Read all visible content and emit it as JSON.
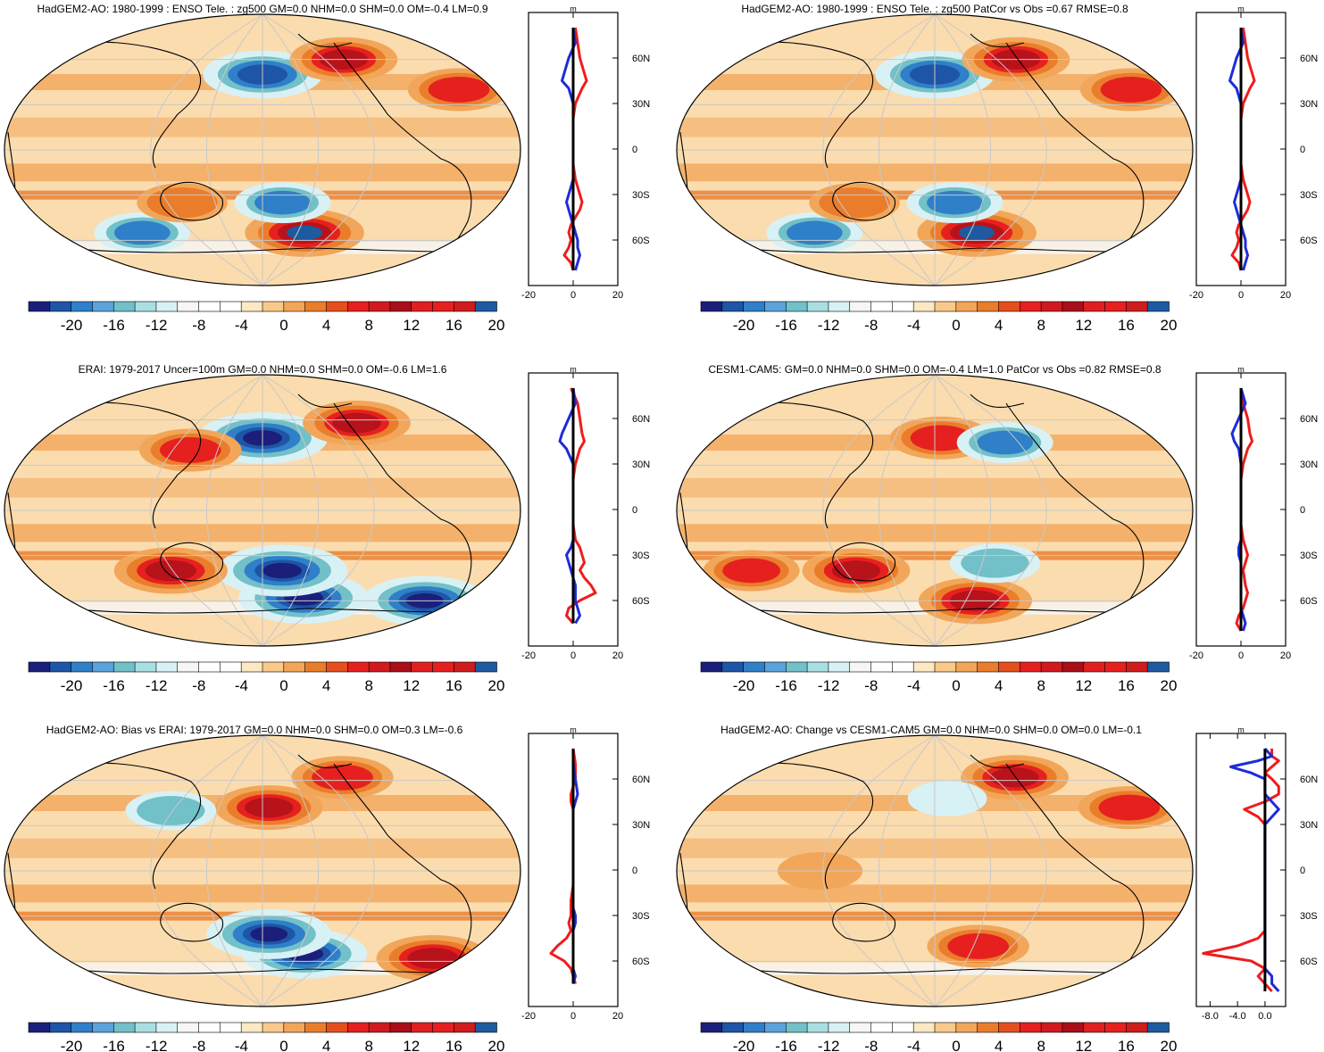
{
  "colors": {
    "scale": [
      "#1b1f7a",
      "#1e55a6",
      "#2f7fc9",
      "#5aa3dd",
      "#72c0c8",
      "#a9dfe3",
      "#d8f1f5",
      "#f6f6f6",
      "#ffffff",
      "#fbe6c2",
      "#f7c98a",
      "#f2a65a",
      "#ea7d2b",
      "#e1521f",
      "#e6201f",
      "#d51e20",
      "#b8121b",
      "#e02020",
      "#d01c1c",
      "#f03030",
      "#1e5aa0"
    ],
    "land": "#000000",
    "grid": "#c8c8c8",
    "zonal_pos": "#ee1c1c",
    "zonal_neg": "#1f2bd8",
    "zonal_mean": "#000000"
  },
  "colorbar_labels": [
    "-20",
    "-16",
    "-12",
    "-8",
    "-4",
    "0",
    "4",
    "8",
    "12",
    "16",
    "20"
  ],
  "chart_data": [
    {
      "type": "heatmap",
      "title": "HadGEM2-AO: 1980-1999 : ENSO Tele. : zg500 GM=0.0 NHM=0.0 SHM=0.0 OM=-0.4 LM=0.9",
      "colorbar": {
        "range": [
          -20,
          20
        ],
        "ticks": [
          "-20",
          "-16",
          "-12",
          "-8",
          "-4",
          "0",
          "4",
          "8",
          "12",
          "16",
          "20"
        ]
      },
      "anomalies": [
        {
          "lon": 180,
          "lat": 50,
          "value": -18
        },
        {
          "lon": 250,
          "lat": 60,
          "value": 14
        },
        {
          "lon": 330,
          "lat": 40,
          "value": 12
        },
        {
          "lon": 215,
          "lat": -55,
          "value": 18
        },
        {
          "lon": 195,
          "lat": -35,
          "value": -10
        },
        {
          "lon": 80,
          "lat": -55,
          "value": -10
        },
        {
          "lon": 120,
          "lat": -35,
          "value": 8
        }
      ],
      "zonal": {
        "ylabel": "m",
        "xlim": [
          -20,
          20
        ],
        "xticks": [
          "-20",
          "0",
          "20"
        ],
        "lat_ticks": [
          "60N",
          "30N",
          "0",
          "30S",
          "60S"
        ],
        "lat_values": [
          60,
          30,
          0,
          -30,
          -60
        ],
        "lat": [
          80,
          70,
          60,
          50,
          45,
          40,
          30,
          20,
          10,
          0,
          -10,
          -20,
          -25,
          -30,
          -35,
          -40,
          -50,
          -55,
          -60,
          -65,
          -70,
          -75,
          -80
        ],
        "ocean": [
          0,
          1,
          -2,
          -4,
          -5,
          -2,
          0,
          0,
          0,
          0,
          0,
          0,
          -1,
          -2,
          -3,
          -2,
          0,
          1,
          2,
          2,
          3,
          2,
          1
        ],
        "land": [
          1,
          2,
          3,
          5,
          6,
          4,
          1,
          0,
          0,
          0,
          0,
          1,
          2,
          3,
          4,
          3,
          -1,
          -2,
          -1,
          -2,
          -4,
          -1,
          0
        ],
        "mean": [
          0,
          0,
          0,
          0,
          0,
          0,
          0,
          0,
          0,
          0,
          0,
          0,
          0,
          0,
          0,
          0,
          0,
          0,
          0,
          0,
          0,
          0,
          0
        ]
      }
    },
    {
      "type": "heatmap",
      "title": "HadGEM2-AO: 1980-1999 : ENSO Tele. : zg500 PatCor vs Obs =0.67 RMSE=0.8",
      "colorbar": {
        "range": [
          -20,
          20
        ],
        "ticks": [
          "-20",
          "-16",
          "-12",
          "-8",
          "-4",
          "0",
          "4",
          "8",
          "12",
          "16",
          "20"
        ]
      },
      "anomalies": [
        {
          "lon": 180,
          "lat": 50,
          "value": -18
        },
        {
          "lon": 250,
          "lat": 60,
          "value": 14
        },
        {
          "lon": 330,
          "lat": 40,
          "value": 12
        },
        {
          "lon": 215,
          "lat": -55,
          "value": 18
        },
        {
          "lon": 195,
          "lat": -35,
          "value": -10
        },
        {
          "lon": 80,
          "lat": -55,
          "value": -10
        },
        {
          "lon": 120,
          "lat": -35,
          "value": 8
        }
      ],
      "zonal": {
        "ylabel": "m",
        "xlim": [
          -20,
          20
        ],
        "xticks": [
          "-20",
          "0",
          "20"
        ],
        "lat_ticks": [
          "60N",
          "30N",
          "0",
          "30S",
          "60S"
        ],
        "lat_values": [
          60,
          30,
          0,
          -30,
          -60
        ],
        "lat": [
          80,
          70,
          60,
          50,
          45,
          40,
          30,
          20,
          10,
          0,
          -10,
          -20,
          -25,
          -30,
          -35,
          -40,
          -50,
          -55,
          -60,
          -65,
          -70,
          -75,
          -80
        ],
        "ocean": [
          0,
          1,
          -2,
          -4,
          -5,
          -2,
          0,
          0,
          0,
          0,
          0,
          0,
          -1,
          -2,
          -3,
          -2,
          0,
          1,
          2,
          2,
          3,
          2,
          1
        ],
        "land": [
          1,
          2,
          3,
          5,
          6,
          4,
          1,
          0,
          0,
          0,
          0,
          1,
          2,
          3,
          4,
          3,
          -1,
          -2,
          -1,
          -2,
          -4,
          -1,
          0
        ],
        "mean": [
          0,
          0,
          0,
          0,
          0,
          0,
          0,
          0,
          0,
          0,
          0,
          0,
          0,
          0,
          0,
          0,
          0,
          0,
          0,
          0,
          0,
          0,
          0
        ]
      }
    },
    {
      "type": "heatmap",
      "title": "ERAI: 1979-2017 Uncer=100m GM=0.0 NHM=0.0 SHM=0.0 OM=-0.6 LM=1.6",
      "colorbar": {
        "range": [
          -20,
          20
        ],
        "ticks": [
          "-20",
          "-16",
          "-12",
          "-8",
          "-4",
          "0",
          "4",
          "8",
          "12",
          "16",
          "20"
        ]
      },
      "anomalies": [
        {
          "lon": 180,
          "lat": 48,
          "value": -22
        },
        {
          "lon": 260,
          "lat": 58,
          "value": 14
        },
        {
          "lon": 125,
          "lat": 40,
          "value": 12
        },
        {
          "lon": 215,
          "lat": -58,
          "value": -22
        },
        {
          "lon": 195,
          "lat": -40,
          "value": -22
        },
        {
          "lon": 110,
          "lat": -40,
          "value": 16
        },
        {
          "lon": 320,
          "lat": -60,
          "value": -20
        }
      ],
      "zonal": {
        "ylabel": "m",
        "xlim": [
          -20,
          20
        ],
        "xticks": [
          "-20",
          "0",
          "20"
        ],
        "lat_ticks": [
          "60N",
          "30N",
          "0",
          "30S",
          "60S"
        ],
        "lat_values": [
          60,
          30,
          0,
          -30,
          -60
        ],
        "lat": [
          80,
          70,
          60,
          50,
          45,
          40,
          30,
          20,
          10,
          0,
          -10,
          -20,
          -25,
          -30,
          -35,
          -40,
          -45,
          -50,
          -55,
          -60,
          -65,
          -70,
          -75
        ],
        "ocean": [
          0,
          1,
          -2,
          -5,
          -6,
          -3,
          0,
          0,
          0,
          0,
          0,
          0,
          -1,
          -3,
          -2,
          -1,
          0,
          1,
          1,
          1,
          2,
          3,
          1
        ],
        "land": [
          -1,
          2,
          3,
          4,
          5,
          3,
          1,
          0,
          0,
          0,
          0,
          1,
          3,
          4,
          5,
          3,
          5,
          8,
          10,
          3,
          -2,
          -3,
          0
        ],
        "mean": [
          0,
          0,
          0,
          0,
          0,
          0,
          0,
          0,
          0,
          0,
          0,
          0,
          0,
          0,
          0,
          0,
          0,
          0,
          0,
          0,
          0,
          0,
          0
        ]
      }
    },
    {
      "type": "heatmap",
      "title": "CESM1-CAM5: GM=0.0 NHM=0.0 SHM=0.0 OM=-0.4 LM=1.0 PatCor vs Obs =0.82 RMSE=0.8",
      "colorbar": {
        "range": [
          -20,
          20
        ],
        "ticks": [
          "-20",
          "-16",
          "-12",
          "-8",
          "-4",
          "0",
          "4",
          "8",
          "12",
          "16",
          "20"
        ]
      },
      "anomalies": [
        {
          "lon": 185,
          "lat": 48,
          "value": 12
        },
        {
          "lon": 235,
          "lat": 45,
          "value": -10
        },
        {
          "lon": 120,
          "lat": -40,
          "value": 14
        },
        {
          "lon": 215,
          "lat": -60,
          "value": 16
        },
        {
          "lon": 225,
          "lat": -35,
          "value": -8
        },
        {
          "lon": 40,
          "lat": -40,
          "value": 10
        }
      ],
      "zonal": {
        "ylabel": "m",
        "xlim": [
          -20,
          20
        ],
        "xticks": [
          "-20",
          "0",
          "20"
        ],
        "lat_ticks": [
          "60N",
          "30N",
          "0",
          "30S",
          "60S"
        ],
        "lat_values": [
          60,
          30,
          0,
          -30,
          -60
        ],
        "lat": [
          80,
          70,
          60,
          50,
          45,
          40,
          30,
          20,
          10,
          0,
          -10,
          -20,
          -25,
          -30,
          -35,
          -40,
          -50,
          -55,
          -60,
          -65,
          -70,
          -75,
          -80
        ],
        "ocean": [
          0,
          2,
          -1,
          -4,
          -3,
          -1,
          0,
          0,
          0,
          0,
          0,
          0,
          -1,
          -1,
          0,
          0,
          0,
          0,
          0,
          0,
          1,
          2,
          1
        ],
        "land": [
          0,
          1,
          3,
          4,
          5,
          3,
          1,
          0,
          0,
          0,
          0,
          1,
          2,
          3,
          2,
          1,
          2,
          3,
          2,
          1,
          -1,
          -2,
          0
        ],
        "mean": [
          0,
          0,
          0,
          0,
          0,
          0,
          0,
          0,
          0,
          0,
          0,
          0,
          0,
          0,
          0,
          0,
          0,
          0,
          0,
          0,
          0,
          0,
          0
        ]
      }
    },
    {
      "type": "heatmap",
      "title": "HadGEM2-AO: Bias vs ERAI: 1979-2017 GM=0.0 NHM=0.0 SHM=0.0 OM=0.3 LM=-0.6",
      "colorbar": {
        "range": [
          -20,
          20
        ],
        "ticks": [
          "-20",
          "-16",
          "-12",
          "-8",
          "-4",
          "0",
          "4",
          "8",
          "12",
          "16",
          "20"
        ]
      },
      "anomalies": [
        {
          "lon": 185,
          "lat": 42,
          "value": 14
        },
        {
          "lon": 250,
          "lat": 62,
          "value": 12
        },
        {
          "lon": 215,
          "lat": -55,
          "value": -20
        },
        {
          "lon": 185,
          "lat": -42,
          "value": -20
        },
        {
          "lon": 325,
          "lat": -58,
          "value": 16
        },
        {
          "lon": 110,
          "lat": 40,
          "value": -8
        }
      ],
      "zonal": {
        "ylabel": "m",
        "xlim": [
          -20,
          20
        ],
        "xticks": [
          "-20",
          "0",
          "20"
        ],
        "lat_ticks": [
          "60N",
          "30N",
          "0",
          "30S",
          "60S"
        ],
        "lat_values": [
          60,
          30,
          0,
          -30,
          -60
        ],
        "lat": [
          80,
          70,
          60,
          50,
          45,
          40,
          30,
          20,
          10,
          0,
          -10,
          -20,
          -25,
          -30,
          -35,
          -40,
          -45,
          -50,
          -55,
          -60,
          -65,
          -70,
          -75
        ],
        "ocean": [
          0,
          0,
          1,
          2,
          1,
          0,
          0,
          0,
          0,
          0,
          0,
          0,
          0,
          1,
          1,
          0,
          0,
          0,
          0,
          0,
          0,
          1,
          0
        ],
        "land": [
          0,
          1,
          1,
          -1,
          -1,
          0,
          0,
          0,
          0,
          0,
          0,
          -1,
          -1,
          -1,
          -2,
          -1,
          -3,
          -7,
          -10,
          -4,
          -1,
          0,
          1
        ],
        "mean": [
          0,
          0,
          0,
          0,
          0,
          0,
          0,
          0,
          0,
          0,
          0,
          0,
          0,
          0,
          0,
          0,
          0,
          0,
          0,
          0,
          0,
          0,
          0
        ]
      }
    },
    {
      "type": "heatmap",
      "title": "HadGEM2-AO: Change vs CESM1-CAM5 GM=0.0 NHM=0.0 SHM=0.0 OM=0.0 LM=-0.1",
      "colorbar": {
        "range": [
          -20,
          20
        ],
        "ticks": [
          "-20",
          "-16",
          "-12",
          "-8",
          "-4",
          "0",
          "4",
          "8",
          "12",
          "16",
          "20"
        ]
      },
      "anomalies": [
        {
          "lon": 250,
          "lat": 62,
          "value": 14
        },
        {
          "lon": 330,
          "lat": 42,
          "value": 12
        },
        {
          "lon": 190,
          "lat": 48,
          "value": -4
        },
        {
          "lon": 215,
          "lat": -50,
          "value": 12
        },
        {
          "lon": 100,
          "lat": 0,
          "value": 6
        }
      ],
      "zonal": {
        "ylabel": "m",
        "xlim": [
          -10,
          3
        ],
        "xticks": [
          "-8.0",
          "-4.0",
          "0.0"
        ],
        "lat_ticks": [
          "60N",
          "30N",
          "0",
          "30S",
          "60S"
        ],
        "lat_values": [
          60,
          30,
          0,
          -30,
          -60
        ],
        "lat": [
          80,
          75,
          72,
          68,
          64,
          60,
          55,
          50,
          45,
          40,
          35,
          30,
          25,
          20,
          10,
          0,
          -10,
          -20,
          -30,
          -40,
          -45,
          -50,
          -55,
          -60,
          -65,
          -70,
          -75,
          -80
        ],
        "ocean": [
          0,
          1,
          -1,
          -5,
          -2,
          0,
          0,
          0,
          1,
          2,
          1,
          0,
          0,
          0,
          0,
          0,
          0,
          0,
          0,
          0,
          0,
          0,
          0,
          0,
          0,
          1,
          1,
          2
        ],
        "land": [
          1,
          1,
          2,
          1,
          0,
          1,
          2,
          2,
          0,
          -3,
          -1,
          0,
          0,
          0,
          0,
          0,
          0,
          0,
          0,
          0,
          -1,
          -4,
          -9,
          -2,
          0,
          -1,
          0,
          1
        ],
        "mean": [
          0,
          0,
          0,
          0,
          0,
          0,
          0,
          0,
          0,
          0,
          0,
          0,
          0,
          0,
          0,
          0,
          0,
          0,
          0,
          0,
          0,
          0,
          0,
          0,
          0,
          0,
          0,
          0
        ]
      }
    }
  ]
}
